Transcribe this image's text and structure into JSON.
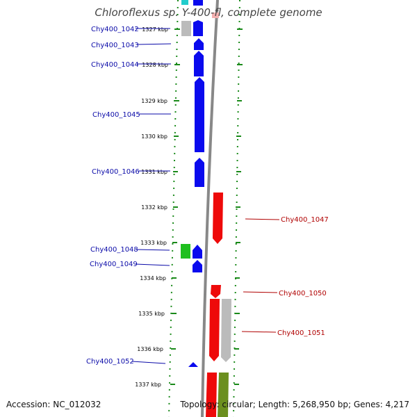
{
  "title": "Chloroflexus sp. Y-400-fl, complete genome",
  "accession": "Accession: NC_012032",
  "topology": "Topology: circular; Length: 5,268,950 bp; Genes: 4,217",
  "colors": {
    "forward_gene": "#0a0aee",
    "reverse_gene": "#ee0a0a",
    "hypothetical": "#bbbbbb",
    "green_gene": "#1fbf1f",
    "olive_gene": "#6b8f1f",
    "tick": "#1a8a1a",
    "backbone": "#888888"
  },
  "ticks": [
    "1327 kbp",
    "1328 kbp",
    "1329 kbp",
    "1330 kbp",
    "1331 kbp",
    "1332 kbp",
    "1333 kbp",
    "1334 kbp",
    "1335 kbp",
    "1336 kbp",
    "1337 kbp"
  ],
  "left_labels": [
    {
      "text": "Chy400_1042"
    },
    {
      "text": "Chy400_1043"
    },
    {
      "text": "Chy400_1044"
    },
    {
      "text": "Chy400_1045"
    },
    {
      "text": "Chy400_1046"
    },
    {
      "text": "Chy400_1048"
    },
    {
      "text": "Chy400_1049"
    },
    {
      "text": "Chy400_1052"
    }
  ],
  "right_labels": [
    {
      "text": "Chy400_1047"
    },
    {
      "text": "Chy400_1050"
    },
    {
      "text": "Chy400_1051"
    }
  ]
}
